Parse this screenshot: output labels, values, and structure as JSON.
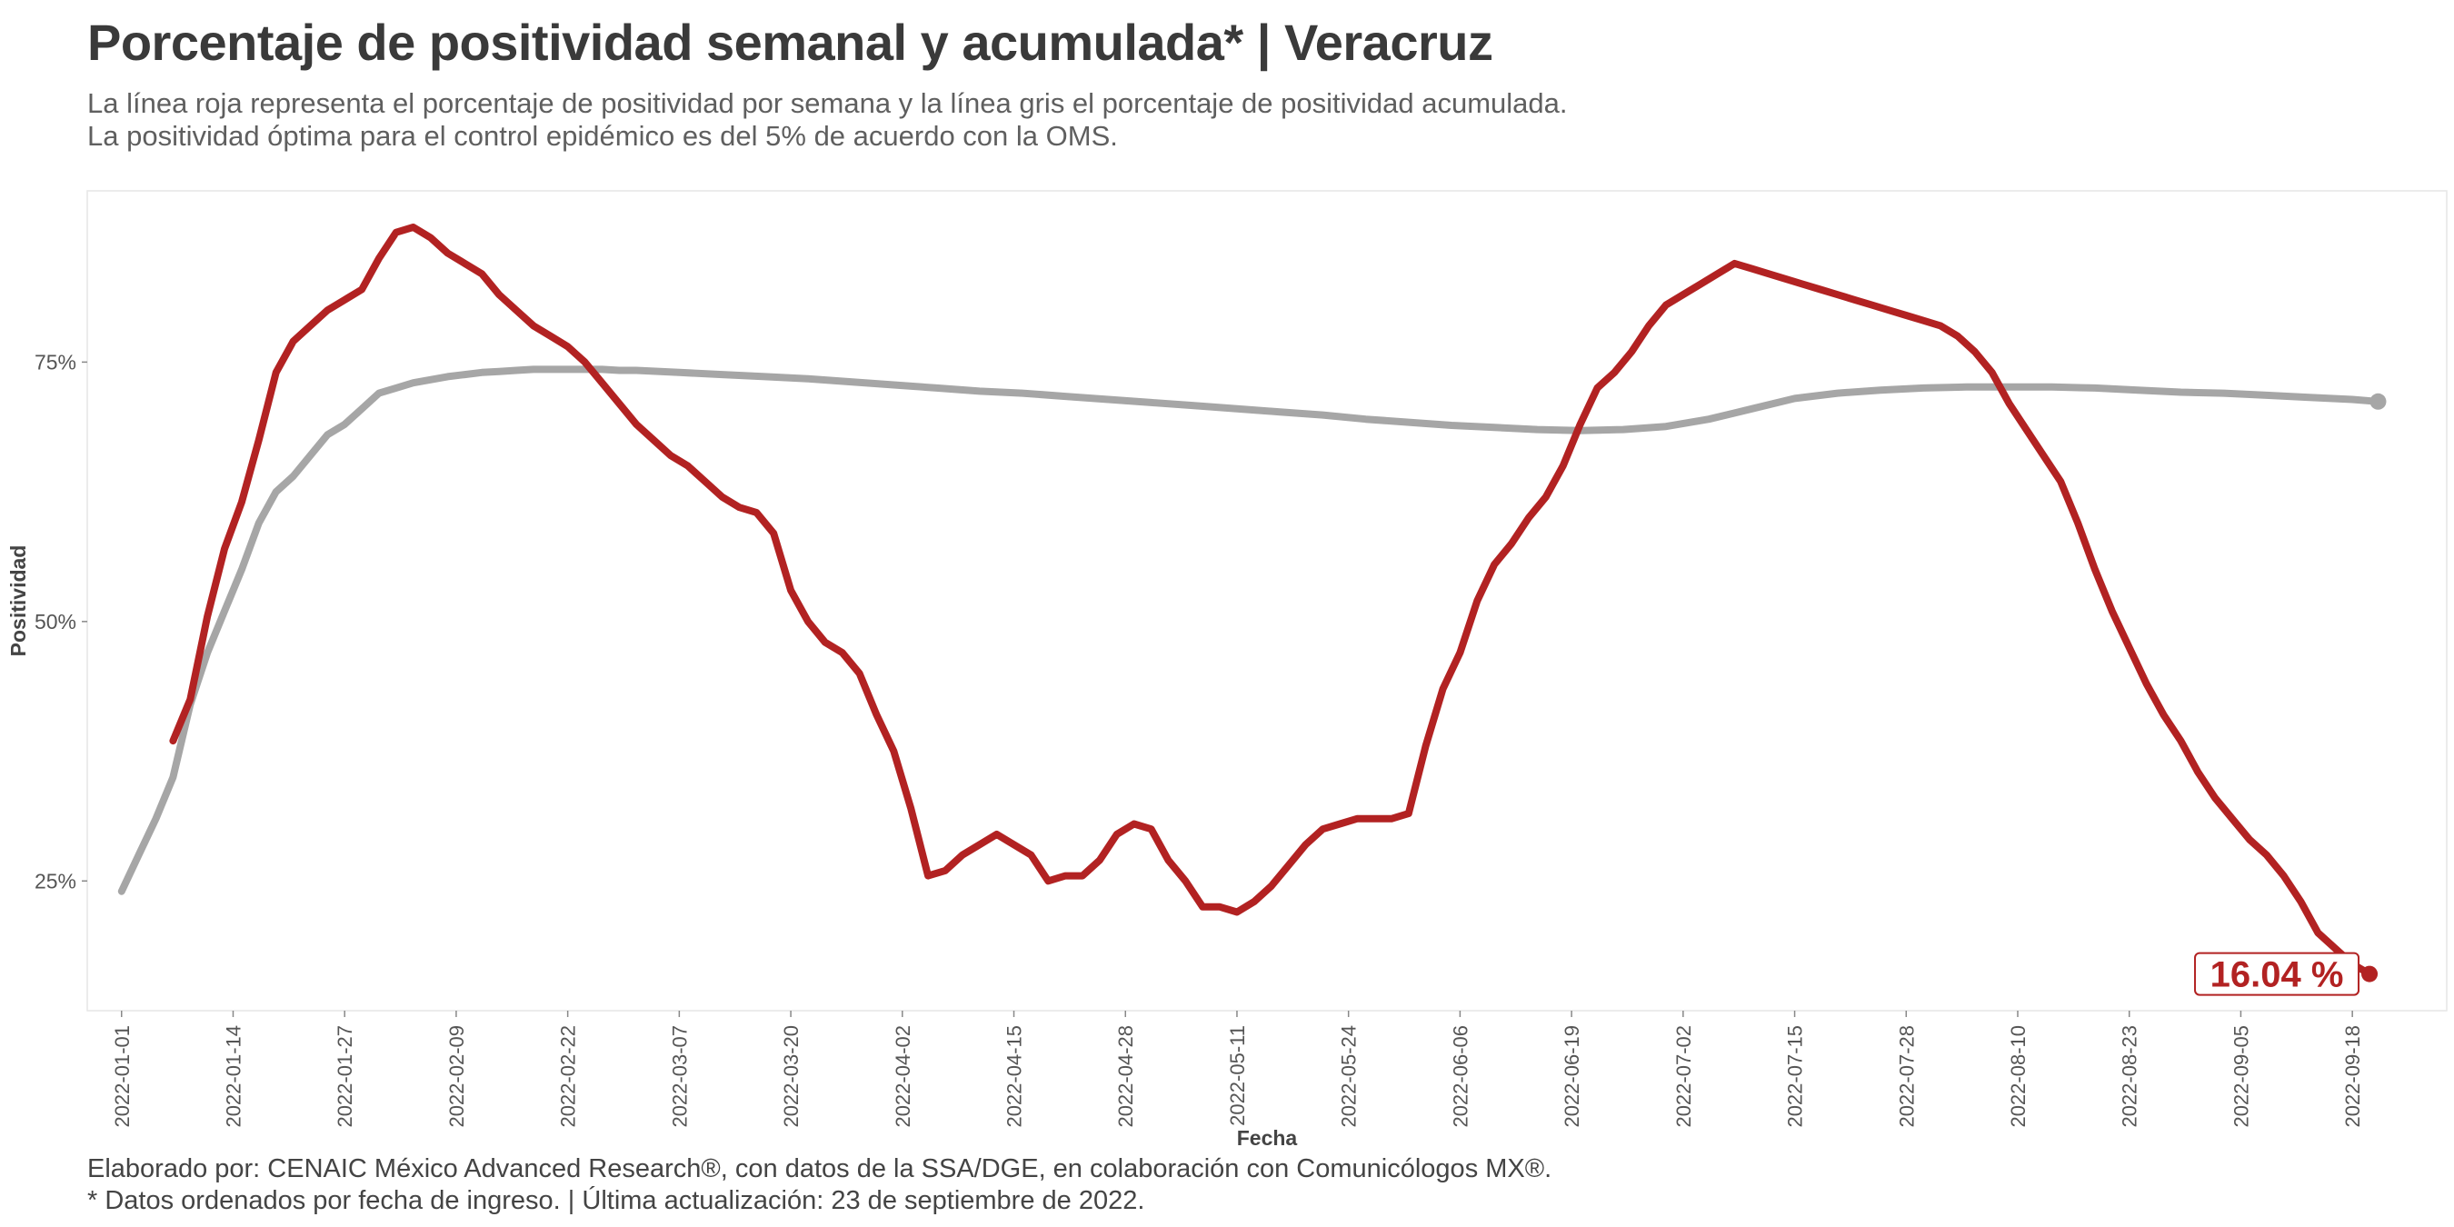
{
  "title": "Porcentaje de positividad semanal y acumulada* | Veracruz",
  "subtitle_1": "La línea roja representa el porcentaje de positividad por semana y la línea gris el porcentaje de positividad acumulada.",
  "subtitle_2": "La positividad óptima para el control epidémico es del 5% de acuerdo con la OMS.",
  "caption_1": "Elaborado por: CENAIC México Advanced Research®, con datos de la SSA/DGE, en colaboración con Comunicólogos MX®.",
  "caption_2": "* Datos ordenados por fecha de ingreso. | Última actualización: 23 de septiembre de 2022.",
  "chart_data": {
    "type": "line",
    "xlabel": "Fecha",
    "ylabel": "Positividad",
    "x_ticks": [
      "2022-01-01",
      "2022-01-14",
      "2022-01-27",
      "2022-02-09",
      "2022-02-22",
      "2022-03-07",
      "2022-03-20",
      "2022-04-02",
      "2022-04-15",
      "2022-04-28",
      "2022-05-11",
      "2022-05-24",
      "2022-06-06",
      "2022-06-19",
      "2022-07-02",
      "2022-07-15",
      "2022-07-28",
      "2022-08-10",
      "2022-08-23",
      "2022-09-05",
      "2022-09-18"
    ],
    "y_ticks": [
      "25%",
      "50%",
      "75%"
    ],
    "y_tick_values": [
      25,
      50,
      75
    ],
    "ylim": [
      12.5,
      91.5
    ],
    "xlim": [
      "2021-12-28",
      "2022-09-29"
    ],
    "grid": false,
    "end_label": "16.04 %",
    "colors": {
      "weekly": "#b22222",
      "cumulative": "#a6a6a6"
    },
    "series": [
      {
        "key": "weekly",
        "dates": [
          "2022-01-07",
          "2022-01-09",
          "2022-01-11",
          "2022-01-13",
          "2022-01-15",
          "2022-01-17",
          "2022-01-19",
          "2022-01-21",
          "2022-01-23",
          "2022-01-25",
          "2022-01-27",
          "2022-01-29",
          "2022-01-31",
          "2022-02-02",
          "2022-02-04",
          "2022-02-06",
          "2022-02-08",
          "2022-02-10",
          "2022-02-12",
          "2022-02-14",
          "2022-02-16",
          "2022-02-18",
          "2022-02-20",
          "2022-02-22",
          "2022-02-24",
          "2022-02-26",
          "2022-02-28",
          "2022-03-02",
          "2022-03-04",
          "2022-03-06",
          "2022-03-08",
          "2022-03-10",
          "2022-03-12",
          "2022-03-14",
          "2022-03-16",
          "2022-03-18",
          "2022-03-20",
          "2022-03-22",
          "2022-03-24",
          "2022-03-26",
          "2022-03-28",
          "2022-03-30",
          "2022-04-01",
          "2022-04-03",
          "2022-04-05",
          "2022-04-07",
          "2022-04-09",
          "2022-04-11",
          "2022-04-13",
          "2022-04-15",
          "2022-04-17",
          "2022-04-19",
          "2022-04-21",
          "2022-04-23",
          "2022-04-25",
          "2022-04-27",
          "2022-04-29",
          "2022-05-01",
          "2022-05-03",
          "2022-05-05",
          "2022-05-07",
          "2022-05-09",
          "2022-05-11",
          "2022-05-13",
          "2022-05-15",
          "2022-05-17",
          "2022-05-19",
          "2022-05-21",
          "2022-05-23",
          "2022-05-25",
          "2022-05-27",
          "2022-05-29",
          "2022-05-31",
          "2022-06-02",
          "2022-06-04",
          "2022-06-06",
          "2022-06-08",
          "2022-06-10",
          "2022-06-12",
          "2022-06-14",
          "2022-06-16",
          "2022-06-18",
          "2022-06-20",
          "2022-06-22",
          "2022-06-24",
          "2022-06-26",
          "2022-06-28",
          "2022-06-30",
          "2022-07-02",
          "2022-07-04",
          "2022-07-06",
          "2022-07-08",
          "2022-07-10",
          "2022-07-12",
          "2022-07-14",
          "2022-07-16",
          "2022-07-18",
          "2022-07-20",
          "2022-07-22",
          "2022-07-24",
          "2022-07-26",
          "2022-07-28",
          "2022-07-30",
          "2022-08-01",
          "2022-08-03",
          "2022-08-05",
          "2022-08-07",
          "2022-08-09",
          "2022-08-11",
          "2022-08-13",
          "2022-08-15",
          "2022-08-17",
          "2022-08-19",
          "2022-08-21",
          "2022-08-23",
          "2022-08-25",
          "2022-08-27",
          "2022-08-29",
          "2022-08-31",
          "2022-09-02",
          "2022-09-04",
          "2022-09-06",
          "2022-09-08",
          "2022-09-10",
          "2022-09-12",
          "2022-09-14",
          "2022-09-16",
          "2022-09-18",
          "2022-09-20"
        ],
        "values": [
          38.5,
          42.5,
          50.5,
          57.0,
          61.5,
          67.5,
          74.0,
          77.0,
          78.5,
          80.0,
          81.0,
          82.0,
          85.0,
          87.5,
          88.0,
          87.0,
          85.5,
          84.5,
          83.5,
          81.5,
          80.0,
          78.5,
          77.5,
          76.5,
          75.0,
          73.0,
          71.0,
          69.0,
          67.5,
          66.0,
          65.0,
          63.5,
          62.0,
          61.0,
          60.5,
          58.5,
          53.0,
          50.0,
          48.0,
          47.0,
          45.0,
          41.0,
          37.5,
          32.0,
          25.5,
          26.0,
          27.5,
          28.5,
          29.5,
          28.5,
          27.5,
          25.0,
          25.5,
          25.5,
          27.0,
          29.5,
          30.5,
          30.0,
          27.0,
          25.0,
          22.5,
          22.5,
          22.0,
          23.0,
          24.5,
          26.5,
          28.5,
          30.0,
          30.5,
          31.0,
          31.0,
          31.0,
          31.5,
          38.0,
          43.5,
          47.0,
          52.0,
          55.5,
          57.5,
          60.0,
          62.0,
          65.0,
          69.0,
          72.5,
          74.0,
          76.0,
          78.5,
          80.5,
          81.5,
          82.5,
          83.5,
          84.5,
          84.0,
          83.5,
          83.0,
          82.5,
          82.0,
          81.5,
          81.0,
          80.5,
          80.0,
          79.5,
          79.0,
          78.5,
          77.5,
          76.0,
          74.0,
          71.0,
          68.5,
          66.0,
          63.5,
          59.5,
          55.0,
          51.0,
          47.5,
          44.0,
          41.0,
          38.5,
          35.5,
          33.0,
          31.0,
          29.0,
          27.5,
          25.5,
          23.0,
          20.0,
          18.5,
          17.0,
          16.04
        ]
      },
      {
        "key": "cumulative",
        "dates": [
          "2022-01-01",
          "2022-01-03",
          "2022-01-05",
          "2022-01-07",
          "2022-01-09",
          "2022-01-11",
          "2022-01-13",
          "2022-01-15",
          "2022-01-17",
          "2022-01-19",
          "2022-01-21",
          "2022-01-23",
          "2022-01-25",
          "2022-01-27",
          "2022-01-29",
          "2022-01-31",
          "2022-02-02",
          "2022-02-04",
          "2022-02-06",
          "2022-02-08",
          "2022-02-10",
          "2022-02-12",
          "2022-02-14",
          "2022-02-16",
          "2022-02-18",
          "2022-02-20",
          "2022-02-22",
          "2022-02-24",
          "2022-02-26",
          "2022-02-28",
          "2022-03-02",
          "2022-03-07",
          "2022-03-12",
          "2022-03-17",
          "2022-03-22",
          "2022-03-27",
          "2022-04-01",
          "2022-04-06",
          "2022-04-11",
          "2022-04-16",
          "2022-04-21",
          "2022-04-26",
          "2022-05-01",
          "2022-05-06",
          "2022-05-11",
          "2022-05-16",
          "2022-05-21",
          "2022-05-26",
          "2022-05-31",
          "2022-06-05",
          "2022-06-10",
          "2022-06-15",
          "2022-06-20",
          "2022-06-25",
          "2022-06-30",
          "2022-07-05",
          "2022-07-10",
          "2022-07-15",
          "2022-07-20",
          "2022-07-25",
          "2022-07-30",
          "2022-08-04",
          "2022-08-09",
          "2022-08-14",
          "2022-08-19",
          "2022-08-24",
          "2022-08-29",
          "2022-09-03",
          "2022-09-08",
          "2022-09-13",
          "2022-09-18",
          "2022-09-21"
        ],
        "values": [
          24.0,
          27.5,
          31.0,
          35.0,
          42.0,
          47.0,
          51.0,
          55.0,
          59.5,
          62.5,
          64.0,
          66.0,
          68.0,
          69.0,
          70.5,
          72.0,
          72.5,
          73.0,
          73.3,
          73.6,
          73.8,
          74.0,
          74.1,
          74.2,
          74.3,
          74.3,
          74.3,
          74.3,
          74.3,
          74.2,
          74.2,
          74.0,
          73.8,
          73.6,
          73.4,
          73.1,
          72.8,
          72.5,
          72.2,
          72.0,
          71.7,
          71.4,
          71.1,
          70.8,
          70.5,
          70.2,
          69.9,
          69.5,
          69.2,
          68.9,
          68.7,
          68.5,
          68.4,
          68.5,
          68.8,
          69.5,
          70.5,
          71.5,
          72.0,
          72.3,
          72.5,
          72.6,
          72.6,
          72.6,
          72.5,
          72.3,
          72.1,
          72.0,
          71.8,
          71.6,
          71.4,
          71.2
        ]
      }
    ]
  }
}
